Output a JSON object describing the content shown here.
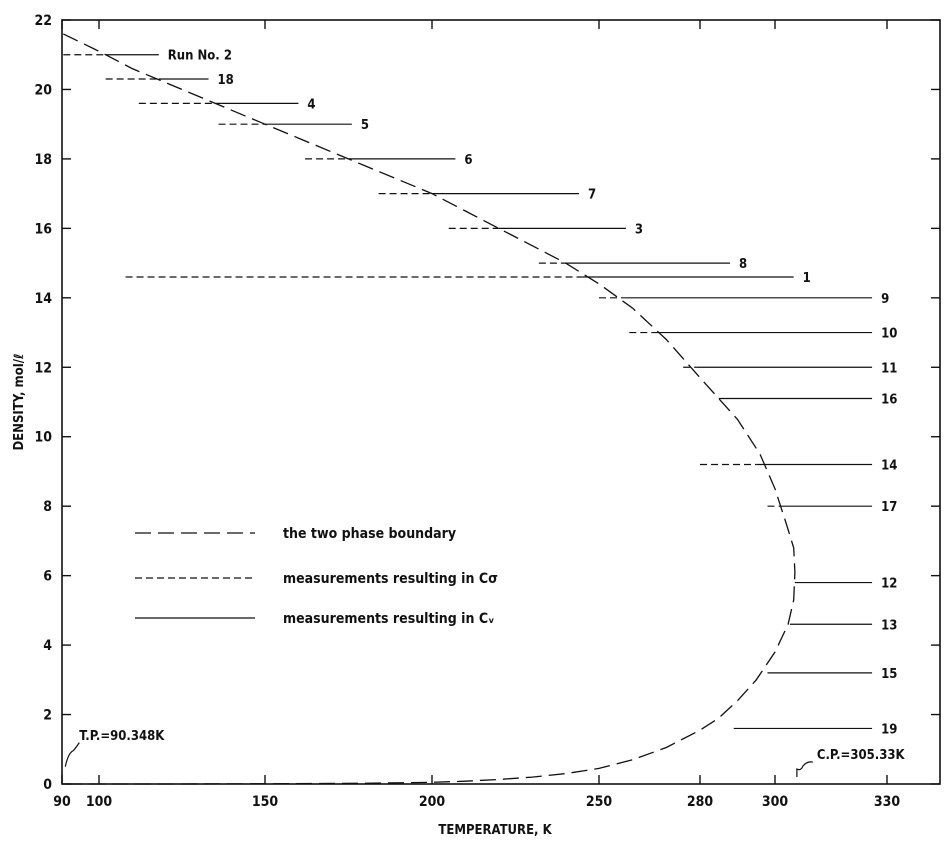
{
  "chart_data": {
    "type": "line",
    "xlabel": "TEMPERATURE, K",
    "ylabel": "DENSITY, mol/ℓ",
    "xlim": [
      90,
      340
    ],
    "ylim": [
      0,
      22
    ],
    "x_ticks": [
      90,
      100,
      150,
      200,
      250,
      280,
      300,
      330
    ],
    "y_ticks": [
      0,
      2,
      4,
      6,
      8,
      10,
      12,
      14,
      16,
      18,
      20,
      22
    ],
    "grid": false,
    "legend_position": "left-center",
    "legend": [
      {
        "style": "long-dash",
        "label": "the two phase boundary"
      },
      {
        "style": "short-dash",
        "label": "measurements resulting in Cσ"
      },
      {
        "style": "solid",
        "label": "measurements resulting in Cᵥ"
      }
    ],
    "boundary": {
      "name": "the two phase boundary",
      "points": [
        [
          90.35,
          21.6
        ],
        [
          100,
          21.1
        ],
        [
          110,
          20.6
        ],
        [
          120,
          20.2
        ],
        [
          130,
          19.8
        ],
        [
          140,
          19.4
        ],
        [
          150,
          19.0
        ],
        [
          160,
          18.6
        ],
        [
          170,
          18.2
        ],
        [
          180,
          17.8
        ],
        [
          190,
          17.4
        ],
        [
          200,
          17.0
        ],
        [
          210,
          16.5
        ],
        [
          220,
          16.0
        ],
        [
          230,
          15.5
        ],
        [
          240,
          15.0
        ],
        [
          250,
          14.4
        ],
        [
          260,
          13.7
        ],
        [
          270,
          12.8
        ],
        [
          280,
          11.7
        ],
        [
          290,
          10.5
        ],
        [
          296,
          9.5
        ],
        [
          300,
          8.5
        ],
        [
          303,
          7.5
        ],
        [
          305,
          6.8
        ],
        [
          305.33,
          6.1
        ],
        [
          305,
          5.3
        ],
        [
          303.5,
          4.6
        ],
        [
          300,
          3.8
        ],
        [
          295,
          3.0
        ],
        [
          290,
          2.4
        ],
        [
          285,
          1.9
        ],
        [
          280,
          1.55
        ],
        [
          270,
          1.05
        ],
        [
          260,
          0.7
        ],
        [
          250,
          0.45
        ],
        [
          240,
          0.3
        ],
        [
          230,
          0.2
        ],
        [
          220,
          0.13
        ],
        [
          210,
          0.08
        ],
        [
          200,
          0.05
        ],
        [
          180,
          0.02
        ],
        [
          150,
          0.005
        ],
        [
          120,
          0.001
        ],
        [
          90.35,
          0.0
        ]
      ]
    },
    "runs": [
      {
        "label": "Run No. 2",
        "density": 21.0,
        "t_start": 90.35,
        "t_boundary": 102,
        "t_end": 118
      },
      {
        "label": "18",
        "density": 20.3,
        "t_start": 102,
        "t_boundary": 118,
        "t_end": 133
      },
      {
        "label": "4",
        "density": 19.6,
        "t_start": 112,
        "t_boundary": 137,
        "t_end": 160
      },
      {
        "label": "5",
        "density": 19.0,
        "t_start": 136,
        "t_boundary": 150,
        "t_end": 176
      },
      {
        "label": "6",
        "density": 18.0,
        "t_start": 162,
        "t_boundary": 175,
        "t_end": 207
      },
      {
        "label": "7",
        "density": 17.0,
        "t_start": 184,
        "t_boundary": 200,
        "t_end": 244
      },
      {
        "label": "3",
        "density": 16.0,
        "t_start": 205,
        "t_boundary": 220,
        "t_end": 258
      },
      {
        "label": "8",
        "density": 15.0,
        "t_start": 232,
        "t_boundary": 240,
        "t_end": 288
      },
      {
        "label": "1",
        "density": 14.6,
        "t_start": 108,
        "t_boundary": 245,
        "t_end": 305
      },
      {
        "label": "9",
        "density": 14.0,
        "t_start": 250,
        "t_boundary": 258,
        "t_end": 326
      },
      {
        "label": "10",
        "density": 13.0,
        "t_start": 259,
        "t_boundary": 266,
        "t_end": 326
      },
      {
        "label": "11",
        "density": 12.0,
        "t_start": 275,
        "t_boundary": 279,
        "t_end": 326
      },
      {
        "label": "16",
        "density": 11.1,
        "t_start": 285,
        "t_boundary": 285,
        "t_end": 326
      },
      {
        "label": "14",
        "density": 9.2,
        "t_start": 280,
        "t_boundary": 295,
        "t_end": 326
      },
      {
        "label": "17",
        "density": 8.0,
        "t_start": 298,
        "t_boundary": 301,
        "t_end": 326
      },
      {
        "label": "12",
        "density": 5.8,
        "t_start": 305.3,
        "t_boundary": 305.3,
        "t_end": 326
      },
      {
        "label": "13",
        "density": 4.6,
        "t_start": 304,
        "t_boundary": 304,
        "t_end": 326
      },
      {
        "label": "15",
        "density": 3.2,
        "t_start": 298,
        "t_boundary": 298,
        "t_end": 326
      },
      {
        "label": "19",
        "density": 1.6,
        "t_start": 289,
        "t_boundary": 289,
        "t_end": 326
      }
    ],
    "annotations": [
      {
        "text": "T.P.=90.348K",
        "t": 90.35,
        "d": 1.1
      },
      {
        "text": "C.P.=305.33K",
        "t": 305.33,
        "d": 0.6
      }
    ]
  }
}
